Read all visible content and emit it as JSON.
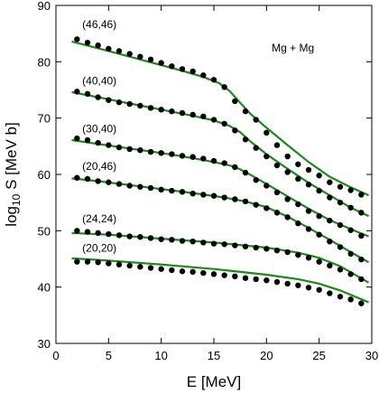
{
  "chart_data": {
    "type": "scatter",
    "title": "",
    "xlabel": "E [MeV]",
    "ylabel_main": "log",
    "ylabel_sub": "10",
    "ylabel_rest": " S [MeV b]",
    "xlim": [
      0,
      30
    ],
    "ylim": [
      30,
      90
    ],
    "xticks": [
      0,
      5,
      10,
      15,
      20,
      25,
      30
    ],
    "yticks": [
      30,
      40,
      50,
      60,
      70,
      80,
      90
    ],
    "annotation": "Mg + Mg",
    "grid": false,
    "colors": {
      "fit_line": "#1a8a1a",
      "points": "#000000",
      "axes": "#000000"
    },
    "series": [
      {
        "name": "(46,46)",
        "label_at": [
          2.5,
          86
        ],
        "points": [
          [
            2,
            84
          ],
          [
            3,
            83.4
          ],
          [
            4,
            82.9
          ],
          [
            5,
            82.3
          ],
          [
            6,
            81.9
          ],
          [
            7,
            81.4
          ],
          [
            8,
            80.9
          ],
          [
            9,
            80.4
          ],
          [
            10,
            79.8
          ],
          [
            11,
            79.2
          ],
          [
            12,
            78.7
          ],
          [
            13,
            78.3
          ],
          [
            14,
            77.6
          ],
          [
            15,
            76.8
          ],
          [
            16,
            75.5
          ],
          [
            17,
            73
          ],
          [
            18,
            71.2
          ],
          [
            19,
            69.7
          ],
          [
            20,
            67.4
          ],
          [
            21,
            65.2
          ],
          [
            22,
            63.2
          ],
          [
            23,
            61.8
          ],
          [
            24,
            60.8
          ],
          [
            25,
            59.8
          ],
          [
            26,
            58.6
          ],
          [
            27,
            57.8
          ],
          [
            28,
            57.2
          ],
          [
            29,
            56.4
          ]
        ],
        "fit": [
          [
            1.5,
            83.6
          ],
          [
            4,
            82.4
          ],
          [
            7,
            80.9
          ],
          [
            10,
            79.4
          ],
          [
            12,
            78.4
          ],
          [
            14,
            77.3
          ],
          [
            15.5,
            76.2
          ],
          [
            16.5,
            74.8
          ],
          [
            17.5,
            72.7
          ],
          [
            18.5,
            70.7
          ],
          [
            20,
            68.3
          ],
          [
            22,
            65.2
          ],
          [
            24,
            62.2
          ],
          [
            26,
            59.6
          ],
          [
            28,
            57.7
          ],
          [
            29.7,
            56.3
          ]
        ]
      },
      {
        "name": "(40,40)",
        "label_at": [
          2.5,
          76
        ],
        "points": [
          [
            2,
            74.7
          ],
          [
            3,
            74.3
          ],
          [
            4,
            73.7
          ],
          [
            5,
            73.2
          ],
          [
            6,
            72.8
          ],
          [
            7,
            72.5
          ],
          [
            8,
            72.2
          ],
          [
            9,
            71.8
          ],
          [
            10,
            71.5
          ],
          [
            11,
            71.2
          ],
          [
            12,
            70.9
          ],
          [
            13,
            70.6
          ],
          [
            14,
            70.3
          ],
          [
            15,
            69.7
          ],
          [
            16,
            69
          ],
          [
            17,
            67.8
          ],
          [
            18,
            66.2
          ],
          [
            19,
            64.7
          ],
          [
            20,
            63.2
          ],
          [
            21,
            61.6
          ],
          [
            22,
            60.4
          ],
          [
            23,
            59.2
          ],
          [
            24,
            58.2
          ],
          [
            25,
            57.1
          ],
          [
            26,
            55.9
          ],
          [
            27,
            55
          ],
          [
            28,
            54.1
          ],
          [
            29,
            53.2
          ]
        ],
        "fit": [
          [
            1.5,
            74.6
          ],
          [
            4,
            73.7
          ],
          [
            7,
            72.6
          ],
          [
            10,
            71.5
          ],
          [
            13,
            70.4
          ],
          [
            15,
            69.6
          ],
          [
            16.5,
            68.6
          ],
          [
            17.5,
            67.5
          ],
          [
            18.5,
            65.8
          ],
          [
            20,
            63.6
          ],
          [
            22,
            61
          ],
          [
            24,
            58.5
          ],
          [
            26,
            56.3
          ],
          [
            28,
            54.1
          ],
          [
            29.7,
            52.6
          ]
        ]
      },
      {
        "name": "(30,40)",
        "label_at": [
          2.5,
          67.5
        ],
        "points": [
          [
            2,
            66.4
          ],
          [
            3,
            66.1
          ],
          [
            4,
            65.6
          ],
          [
            5,
            65.2
          ],
          [
            6,
            64.8
          ],
          [
            7,
            64.5
          ],
          [
            8,
            64.3
          ],
          [
            9,
            64
          ],
          [
            10,
            63.8
          ],
          [
            11,
            63.6
          ],
          [
            12,
            63.3
          ],
          [
            13,
            63.1
          ],
          [
            14,
            62.8
          ],
          [
            15,
            62.4
          ],
          [
            16,
            62
          ],
          [
            17,
            61.3
          ],
          [
            18,
            60.3
          ],
          [
            19,
            59
          ],
          [
            20,
            58
          ],
          [
            21,
            56.8
          ],
          [
            22,
            55.6
          ],
          [
            23,
            54.7
          ],
          [
            24,
            53.5
          ],
          [
            25,
            52.6
          ],
          [
            26,
            51.8
          ],
          [
            27,
            51
          ],
          [
            28,
            50.1
          ],
          [
            29,
            49.1
          ]
        ],
        "fit": [
          [
            1.5,
            66.1
          ],
          [
            4,
            65.4
          ],
          [
            7,
            64.6
          ],
          [
            10,
            63.8
          ],
          [
            13,
            62.9
          ],
          [
            15,
            62.2
          ],
          [
            16.5,
            61.6
          ],
          [
            17.5,
            60.9
          ],
          [
            18.5,
            59.9
          ],
          [
            20,
            58.3
          ],
          [
            22,
            56.1
          ],
          [
            24,
            53.9
          ],
          [
            26,
            51.9
          ],
          [
            28,
            50.3
          ],
          [
            29.7,
            49
          ]
        ]
      },
      {
        "name": "(20,46)",
        "label_at": [
          2.5,
          60.8
        ],
        "points": [
          [
            2,
            59.4
          ],
          [
            3,
            59.2
          ],
          [
            4,
            58.8
          ],
          [
            5,
            58.6
          ],
          [
            6,
            58.3
          ],
          [
            7,
            58
          ],
          [
            8,
            57.8
          ],
          [
            9,
            57.6
          ],
          [
            10,
            57.3
          ],
          [
            11,
            57.1
          ],
          [
            12,
            56.9
          ],
          [
            13,
            56.6
          ],
          [
            14,
            56.4
          ],
          [
            15,
            56.2
          ],
          [
            16,
            55.9
          ],
          [
            17,
            55.6
          ],
          [
            18,
            55.2
          ],
          [
            19,
            54.6
          ],
          [
            20,
            54
          ],
          [
            21,
            53.2
          ],
          [
            22,
            52.4
          ],
          [
            23,
            51.3
          ],
          [
            24,
            50.3
          ],
          [
            25,
            49.3
          ],
          [
            26,
            48.1
          ],
          [
            27,
            47.1
          ],
          [
            28,
            45.9
          ],
          [
            29,
            44.9
          ]
        ],
        "fit": [
          [
            1.5,
            59.3
          ],
          [
            4,
            58.8
          ],
          [
            7,
            58.1
          ],
          [
            10,
            57.4
          ],
          [
            13,
            56.7
          ],
          [
            16,
            55.9
          ],
          [
            18,
            55.2
          ],
          [
            20,
            54.2
          ],
          [
            22,
            52.5
          ],
          [
            24,
            50.5
          ],
          [
            26,
            48.4
          ],
          [
            28,
            46.2
          ],
          [
            29.7,
            44.4
          ]
        ]
      },
      {
        "name": "(24,24)",
        "label_at": [
          2.5,
          51.5
        ],
        "points": [
          [
            2,
            50
          ],
          [
            3,
            49.8
          ],
          [
            4,
            49.6
          ],
          [
            5,
            49.4
          ],
          [
            6,
            49.2
          ],
          [
            7,
            49
          ],
          [
            8,
            48.9
          ],
          [
            9,
            48.7
          ],
          [
            10,
            48.5
          ],
          [
            11,
            48.4
          ],
          [
            12,
            48.2
          ],
          [
            13,
            48.1
          ],
          [
            14,
            47.9
          ],
          [
            15,
            47.7
          ],
          [
            16,
            47.6
          ],
          [
            17,
            47.4
          ],
          [
            18,
            47.2
          ],
          [
            19,
            47
          ],
          [
            20,
            46.8
          ],
          [
            21,
            46.5
          ],
          [
            22,
            46.2
          ],
          [
            23,
            45.7
          ],
          [
            24,
            45.2
          ],
          [
            25,
            44.5
          ],
          [
            26,
            43.8
          ],
          [
            27,
            43.1
          ],
          [
            28,
            42.3
          ],
          [
            29,
            41.4
          ]
        ],
        "fit": [
          [
            1.5,
            49.6
          ],
          [
            5,
            49.3
          ],
          [
            10,
            48.6
          ],
          [
            15,
            47.9
          ],
          [
            20,
            47
          ],
          [
            23,
            46.1
          ],
          [
            25,
            45.2
          ],
          [
            27,
            43.7
          ],
          [
            29.7,
            40.8
          ]
        ]
      },
      {
        "name": "(20,20)",
        "label_at": [
          2.5,
          46.3
        ],
        "points": [
          [
            2,
            44.5
          ],
          [
            3,
            44.5
          ],
          [
            4,
            44.4
          ],
          [
            5,
            44.2
          ],
          [
            6,
            44
          ],
          [
            7,
            43.8
          ],
          [
            8,
            43.6
          ],
          [
            9,
            43.4
          ],
          [
            10,
            43.2
          ],
          [
            11,
            43
          ],
          [
            12,
            42.8
          ],
          [
            13,
            42.7
          ],
          [
            14,
            42.5
          ],
          [
            15,
            42.3
          ],
          [
            16,
            42.1
          ],
          [
            17,
            41.9
          ],
          [
            18,
            41.6
          ],
          [
            19,
            41.4
          ],
          [
            20,
            41.2
          ],
          [
            21,
            40.9
          ],
          [
            22,
            40.6
          ],
          [
            23,
            40.3
          ],
          [
            24,
            39.9
          ],
          [
            25,
            39.5
          ],
          [
            26,
            38.9
          ],
          [
            27,
            38.3
          ],
          [
            28,
            37.8
          ],
          [
            29,
            37.1
          ]
        ],
        "fit": [
          [
            1.5,
            45.1
          ],
          [
            5,
            44.7
          ],
          [
            10,
            44
          ],
          [
            15,
            43.2
          ],
          [
            20,
            42.2
          ],
          [
            23,
            41.4
          ],
          [
            25,
            40.6
          ],
          [
            27,
            39.4
          ],
          [
            29.7,
            37.3
          ]
        ]
      }
    ]
  }
}
